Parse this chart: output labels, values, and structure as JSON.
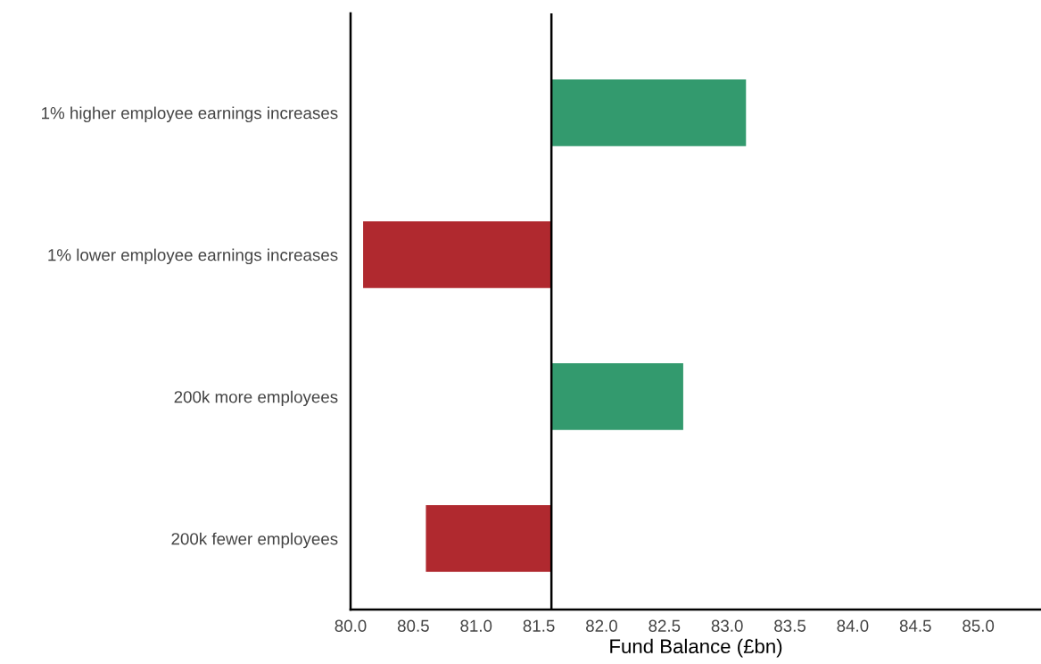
{
  "chart_data": {
    "type": "bar",
    "orientation": "horizontal",
    "xlabel": "Fund Balance (£bn)",
    "categories": [
      "1% higher employee earnings increases",
      "1% lower employee earnings increases",
      "200k more employees",
      "200k fewer employees"
    ],
    "base": [
      81.6,
      81.6,
      81.6,
      81.6
    ],
    "values": [
      1.55,
      -1.5,
      1.05,
      -1.0
    ],
    "colors": [
      "#339a6e",
      "#b0292f",
      "#339a6e",
      "#b0292f"
    ],
    "xlim": [
      80.0,
      85.5
    ],
    "xticks": [
      {
        "value": 80.0,
        "label": "80.0"
      },
      {
        "value": 80.5,
        "label": "80.5"
      },
      {
        "value": 81.0,
        "label": "81.0"
      },
      {
        "value": 81.5,
        "label": "81.5"
      },
      {
        "value": 82.0,
        "label": "82.0"
      },
      {
        "value": 82.5,
        "label": "82.5"
      },
      {
        "value": 83.0,
        "label": "83.0"
      },
      {
        "value": 83.5,
        "label": "83.5"
      },
      {
        "value": 84.0,
        "label": "84.0"
      },
      {
        "value": 84.5,
        "label": "84.5"
      },
      {
        "value": 85.0,
        "label": "85.0"
      }
    ],
    "ref_lines": [
      {
        "axis": "x",
        "value": 81.6,
        "color": "#000000"
      }
    ],
    "grid": false
  }
}
